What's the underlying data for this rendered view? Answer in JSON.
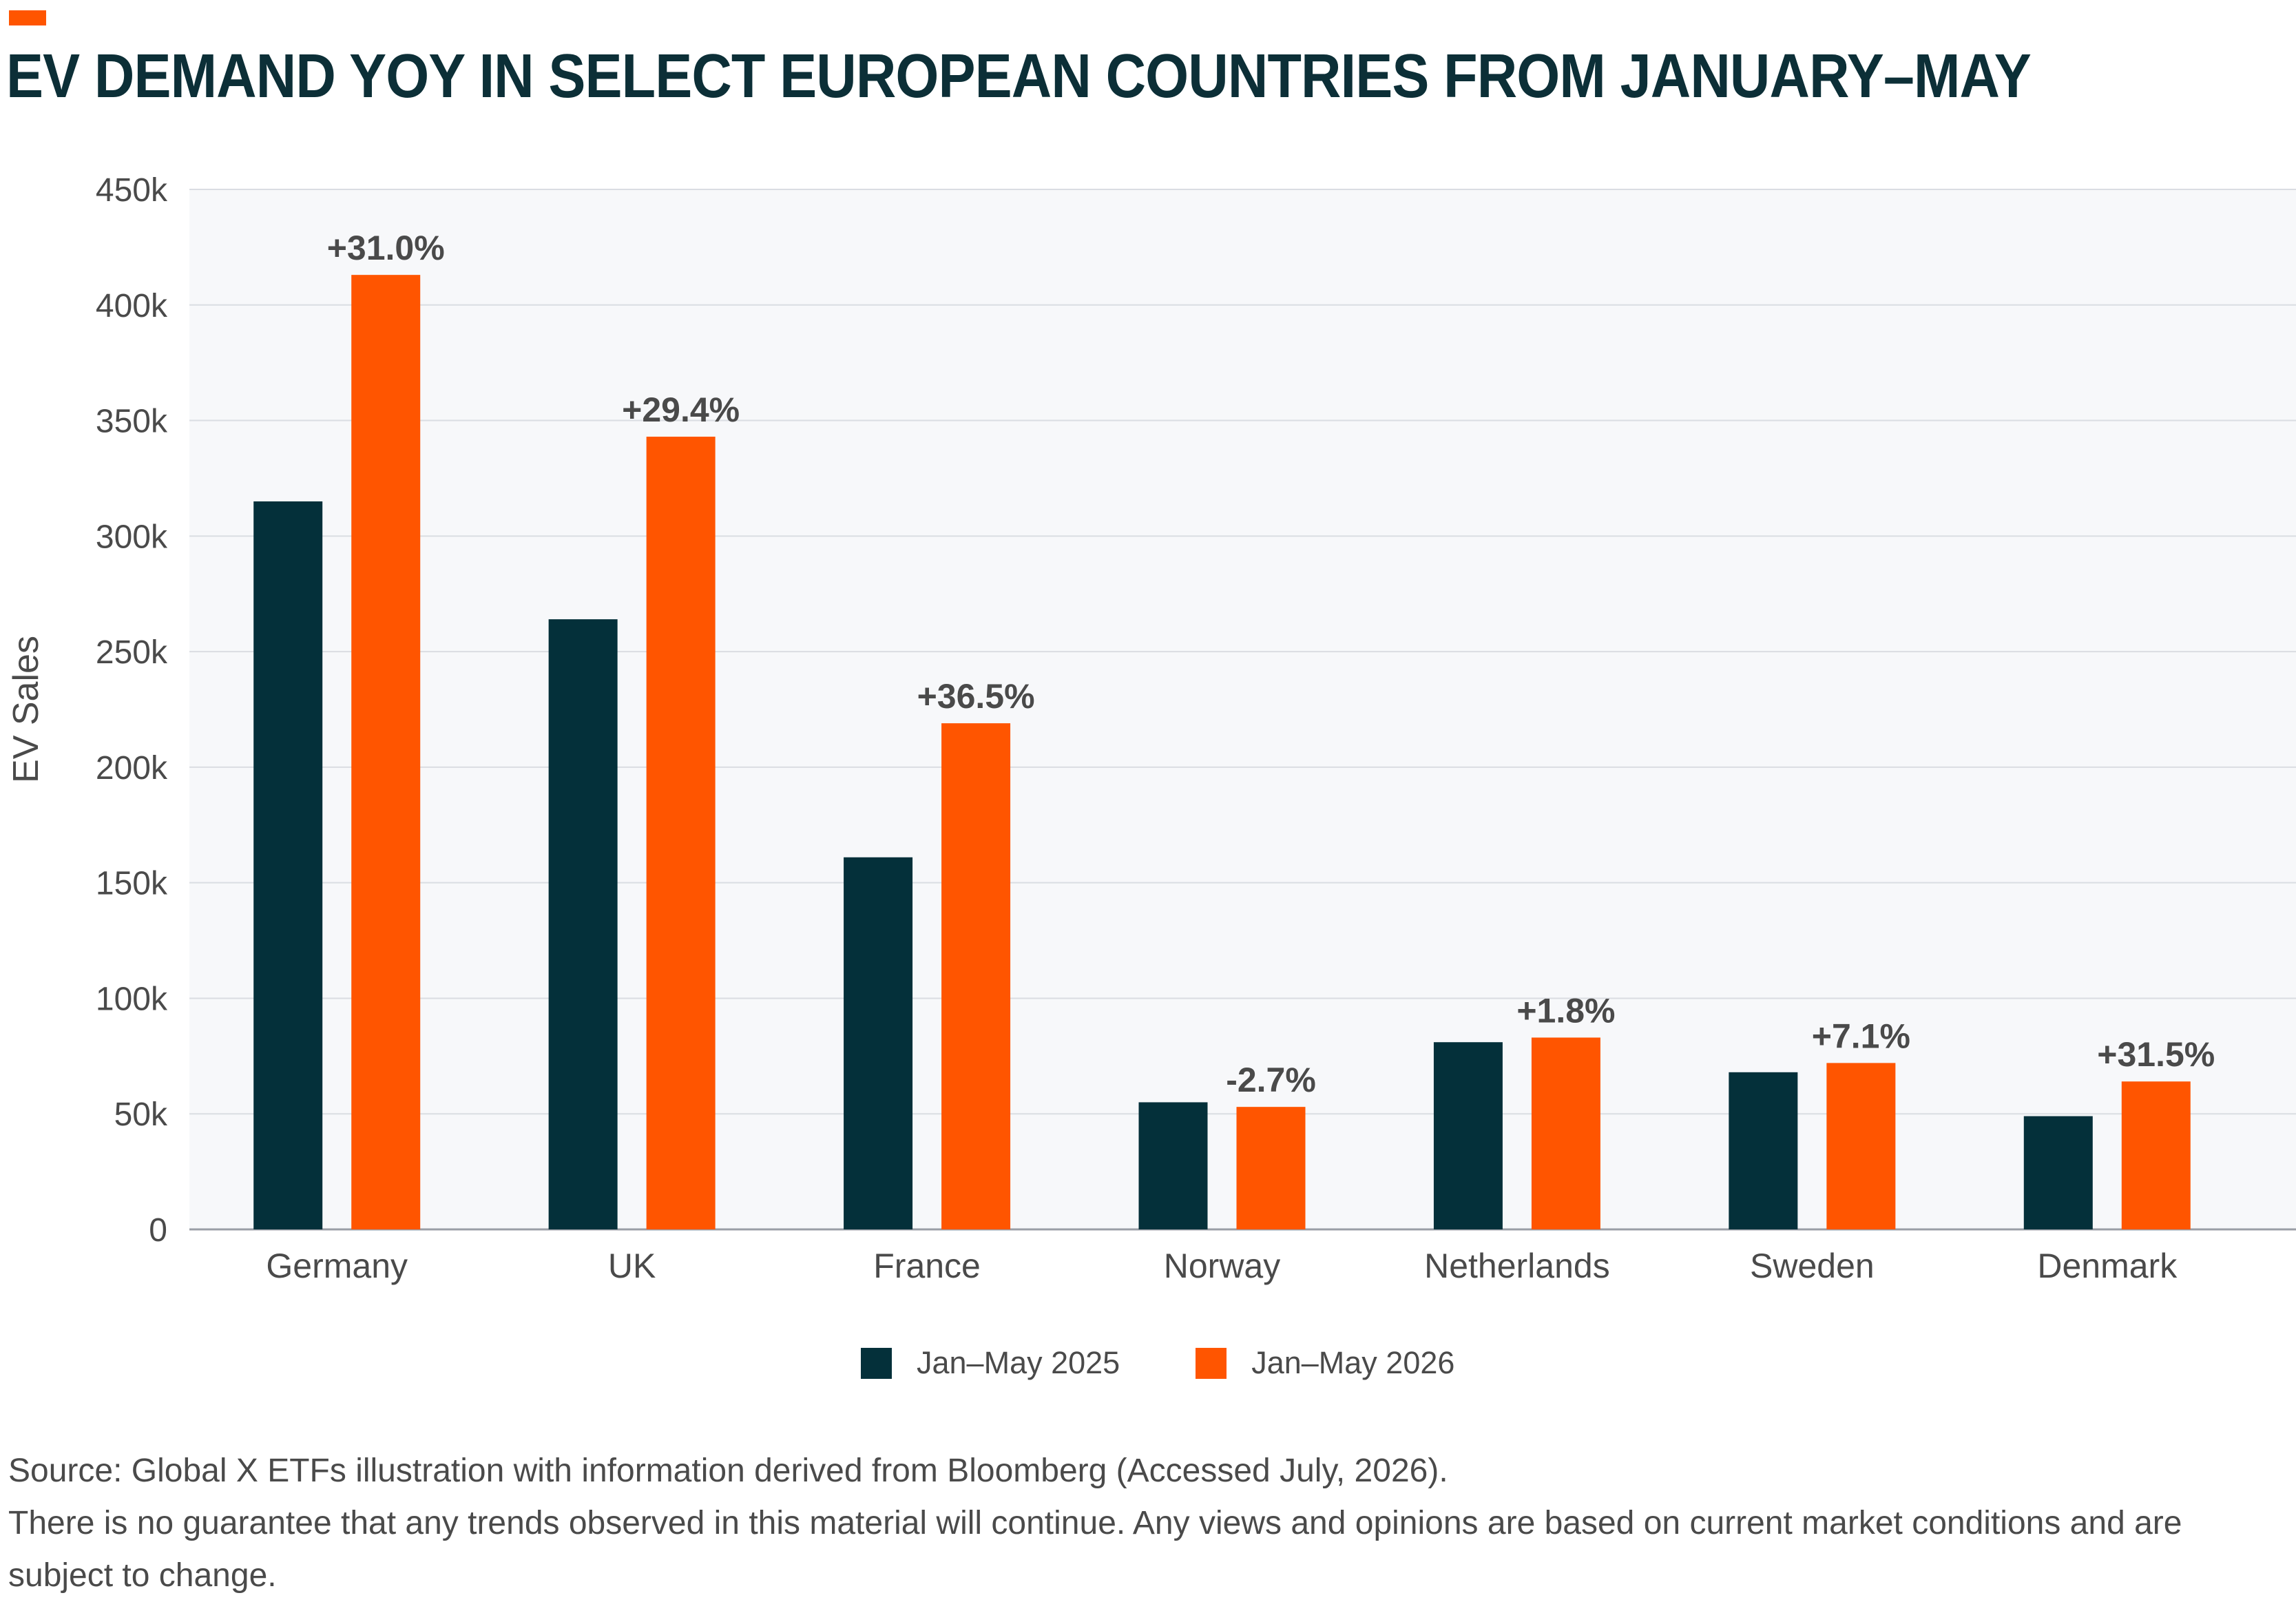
{
  "title": "EV DEMAND YOY IN SELECT EUROPEAN COUNTRIES FROM JANUARY–MAY",
  "colors": {
    "accent": "#ff5500",
    "dark": "#04303a",
    "plot_bg": "#f7f8fa",
    "grid": "#dadde2",
    "text": "#4a4a4a"
  },
  "chart_data": {
    "type": "bar",
    "ylabel": "EV Sales",
    "xlabel": "",
    "ylim": [
      0,
      450000
    ],
    "yticks": [
      0,
      50000,
      100000,
      150000,
      200000,
      250000,
      300000,
      350000,
      400000,
      450000
    ],
    "ytick_labels": [
      "0",
      "50k",
      "100k",
      "150k",
      "200k",
      "250k",
      "300k",
      "350k",
      "400k",
      "450k"
    ],
    "grid": true,
    "legend_position": "bottom-center",
    "categories": [
      "Germany",
      "UK",
      "France",
      "Norway",
      "Netherlands",
      "Sweden",
      "Denmark"
    ],
    "series": [
      {
        "name": "Jan–May 2025",
        "color": "#04303a",
        "values": [
          315000,
          264000,
          161000,
          55000,
          81000,
          68000,
          49000
        ]
      },
      {
        "name": "Jan–May 2026",
        "color": "#ff5500",
        "values": [
          413000,
          343000,
          219000,
          53000,
          83000,
          72000,
          64000
        ]
      }
    ],
    "annotations": [
      "+31.0%",
      "+29.4%",
      "+36.5%",
      "-2.7%",
      "+1.8%",
      "+7.1%",
      "+31.5%"
    ]
  },
  "notes": [
    "Source: Global X ETFs illustration with information derived from Bloomberg (Accessed July, 2026).",
    "There is no guarantee that any trends observed in this material will continue. Any views and opinions are based on current market conditions and are subject to change."
  ]
}
